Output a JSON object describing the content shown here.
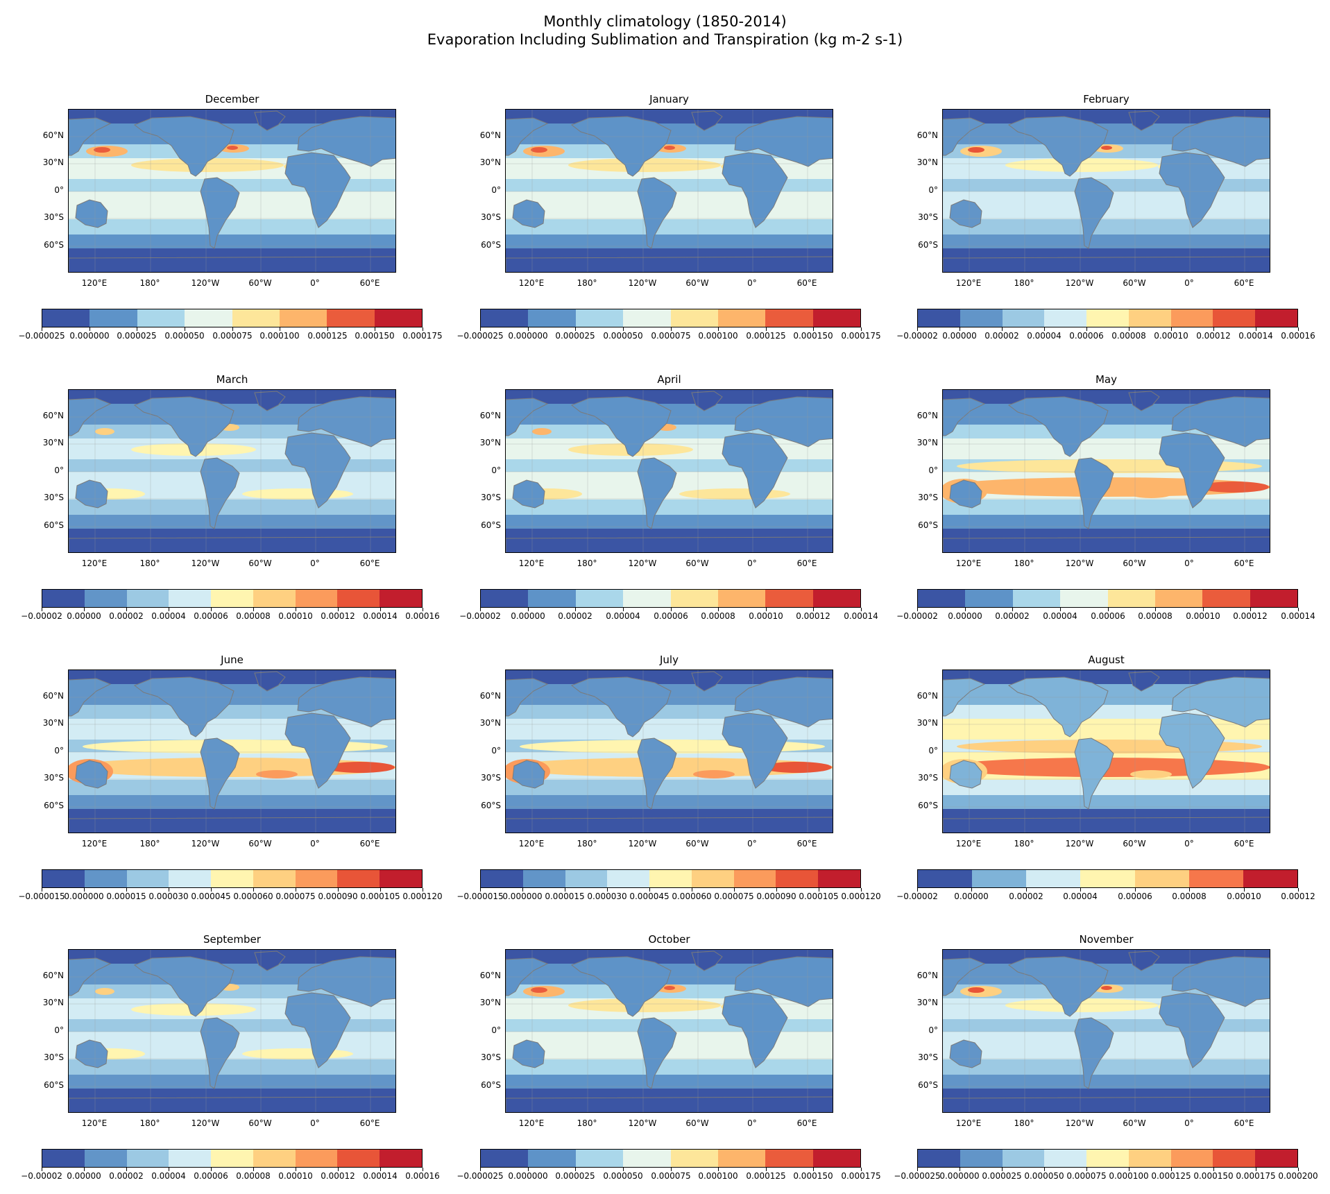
{
  "title": {
    "line1": "Monthly climatology (1850-2014)",
    "line2": "Evaporation Including Sublimation and Transpiration (kg m-2 s-1)"
  },
  "axes": {
    "lat_ticks": [
      "60°N",
      "30°N",
      "0°",
      "30°S",
      "60°S"
    ],
    "lon_ticks": [
      "120°E",
      "180°",
      "120°W",
      "60°W",
      "0°",
      "60°E"
    ]
  },
  "palettes": {
    "p8": [
      "#3b55a4",
      "#5e93c8",
      "#aad7ea",
      "#e8f5ec",
      "#fde69a",
      "#fdb56b",
      "#ea5c3c",
      "#c21e2d"
    ],
    "p9": [
      "#3b55a4",
      "#6295c8",
      "#9cc9e3",
      "#d3ecf4",
      "#fff5b0",
      "#fed081",
      "#fb9b5c",
      "#e85538",
      "#c21e2d"
    ],
    "p7": [
      "#3b55a4",
      "#7fb3d8",
      "#d3ecf4",
      "#fff5b0",
      "#fed081",
      "#f6774b",
      "#c21e2d"
    ]
  },
  "panels": [
    {
      "month": "December",
      "palette": "p8",
      "colorbar_ticks": [
        "−0.000025",
        "0.000000",
        "0.000025",
        "0.000050",
        "0.000075",
        "0.000100",
        "0.000125",
        "0.000150",
        "0.000175"
      ]
    },
    {
      "month": "January",
      "palette": "p8",
      "colorbar_ticks": [
        "−0.000025",
        "0.000000",
        "0.000025",
        "0.000050",
        "0.000075",
        "0.000100",
        "0.000125",
        "0.000150",
        "0.000175"
      ]
    },
    {
      "month": "February",
      "palette": "p9",
      "colorbar_ticks": [
        "−0.00002",
        "0.00000",
        "0.00002",
        "0.00004",
        "0.00006",
        "0.00008",
        "0.00010",
        "0.00012",
        "0.00014",
        "0.00016"
      ]
    },
    {
      "month": "March",
      "palette": "p9",
      "colorbar_ticks": [
        "−0.00002",
        "0.00000",
        "0.00002",
        "0.00004",
        "0.00006",
        "0.00008",
        "0.00010",
        "0.00012",
        "0.00014",
        "0.00016"
      ]
    },
    {
      "month": "April",
      "palette": "p8",
      "colorbar_ticks": [
        "−0.00002",
        "0.00000",
        "0.00002",
        "0.00004",
        "0.00006",
        "0.00008",
        "0.00010",
        "0.00012",
        "0.00014"
      ]
    },
    {
      "month": "May",
      "palette": "p8",
      "colorbar_ticks": [
        "−0.00002",
        "0.00000",
        "0.00002",
        "0.00004",
        "0.00006",
        "0.00008",
        "0.00010",
        "0.00012",
        "0.00014"
      ]
    },
    {
      "month": "June",
      "palette": "p9",
      "colorbar_ticks": [
        "−0.000015",
        "0.000000",
        "0.000015",
        "0.000030",
        "0.000045",
        "0.000060",
        "0.000075",
        "0.000090",
        "0.000105",
        "0.000120"
      ]
    },
    {
      "month": "July",
      "palette": "p9",
      "colorbar_ticks": [
        "−0.000015",
        "0.000000",
        "0.000015",
        "0.000030",
        "0.000045",
        "0.000060",
        "0.000075",
        "0.000090",
        "0.000105",
        "0.000120"
      ]
    },
    {
      "month": "August",
      "palette": "p7",
      "colorbar_ticks": [
        "−0.00002",
        "0.00000",
        "0.00002",
        "0.00004",
        "0.00006",
        "0.00008",
        "0.00010",
        "0.00012"
      ]
    },
    {
      "month": "September",
      "palette": "p9",
      "colorbar_ticks": [
        "−0.00002",
        "0.00000",
        "0.00002",
        "0.00004",
        "0.00006",
        "0.00008",
        "0.00010",
        "0.00012",
        "0.00014",
        "0.00016"
      ]
    },
    {
      "month": "October",
      "palette": "p8",
      "colorbar_ticks": [
        "−0.000025",
        "0.000000",
        "0.000025",
        "0.000050",
        "0.000075",
        "0.000100",
        "0.000125",
        "0.000150",
        "0.000175"
      ]
    },
    {
      "month": "November",
      "palette": "p9",
      "colorbar_ticks": [
        "−0.000025",
        "0.000000",
        "0.000025",
        "0.000050",
        "0.000075",
        "0.000100",
        "0.000125",
        "0.000150",
        "0.000175",
        "0.000200"
      ]
    }
  ]
}
